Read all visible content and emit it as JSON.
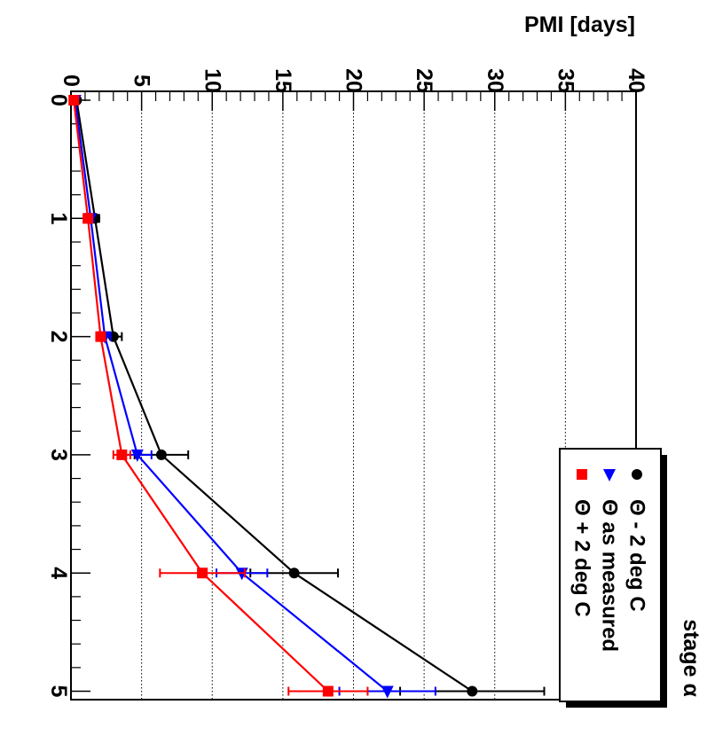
{
  "chart_data": {
    "type": "line",
    "xlabel": "stage α",
    "ylabel": "PMI [days]",
    "x": [
      0,
      1,
      2,
      3,
      4,
      5
    ],
    "xlim": [
      0,
      5.2
    ],
    "ylim": [
      0,
      40
    ],
    "x_ticks": [
      "0",
      "1",
      "2",
      "3",
      "4",
      "5"
    ],
    "y_ticks": [
      "0",
      "5",
      "10",
      "15",
      "20",
      "25",
      "30",
      "35",
      "40"
    ],
    "grid": "dotted lines at each labeled y tick",
    "orientation": "rotated 90° clockwise (stage axis runs top to bottom, PMI axis runs right to left)",
    "legend_position": "bottom-right",
    "series": [
      {
        "name": "Θ - 2 deg C",
        "color": "#000000",
        "marker": "circle",
        "values": [
          0.4,
          1.7,
          3.0,
          6.4,
          15.8,
          28.4
        ],
        "errors": [
          0.1,
          0.3,
          0.6,
          1.9,
          3.1,
          5.1
        ]
      },
      {
        "name": "Θ as measured",
        "color": "#0000ff",
        "marker": "triangle",
        "values": [
          0.3,
          1.4,
          2.4,
          4.7,
          12.1,
          22.4
        ],
        "errors": [
          0.1,
          0.2,
          0.4,
          1.0,
          1.8,
          3.4
        ]
      },
      {
        "name": "Θ + 2 deg C",
        "color": "#ff0000",
        "marker": "square",
        "values": [
          0.2,
          1.2,
          2.1,
          3.6,
          9.3,
          18.2
        ],
        "errors": [
          0.1,
          0.2,
          0.3,
          0.6,
          3.0,
          2.8
        ]
      }
    ]
  }
}
